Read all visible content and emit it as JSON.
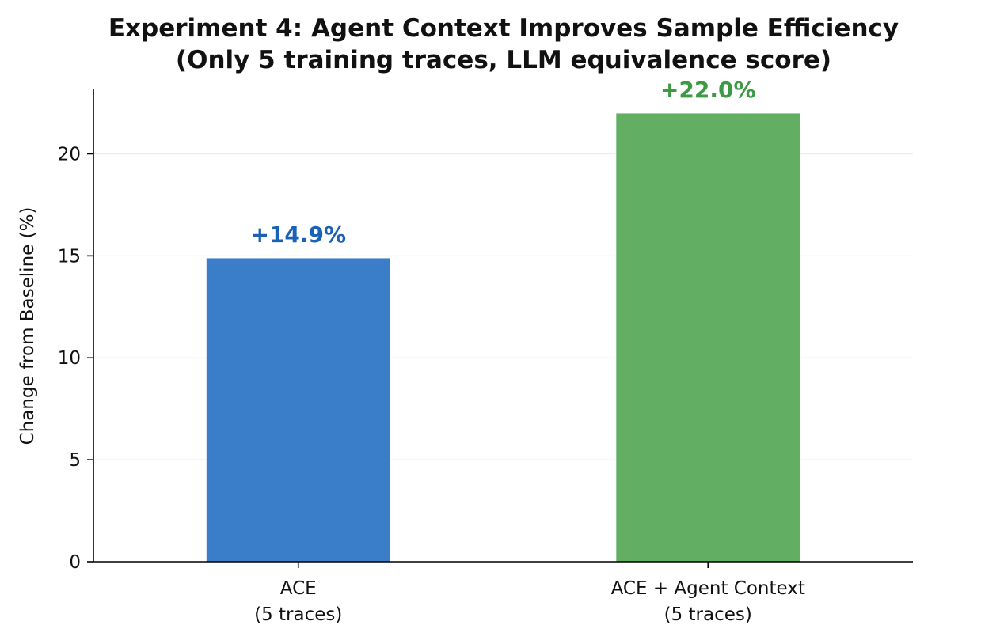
{
  "chart_data": {
    "type": "bar",
    "title": "Experiment 4: Agent Context Improves Sample Efficiency",
    "subtitle": "(Only 5 training traces, LLM equivalence score)",
    "xlabel": "",
    "ylabel": "Change from Baseline (%)",
    "ylim": [
      0,
      23.2
    ],
    "yticks": [
      0,
      5,
      10,
      15,
      20
    ],
    "grid": "y",
    "categories": [
      {
        "line1": "ACE",
        "line2": "(5 traces)"
      },
      {
        "line1": "ACE + Agent Context",
        "line2": "(5 traces)"
      }
    ],
    "values": [
      14.9,
      22.0
    ],
    "data_labels": [
      "+14.9%",
      "+22.0%"
    ],
    "colors": {
      "bars": [
        "#3a7dc9",
        "#62ae62"
      ],
      "labels": [
        "#1a62b8",
        "#3c9a45"
      ]
    }
  }
}
